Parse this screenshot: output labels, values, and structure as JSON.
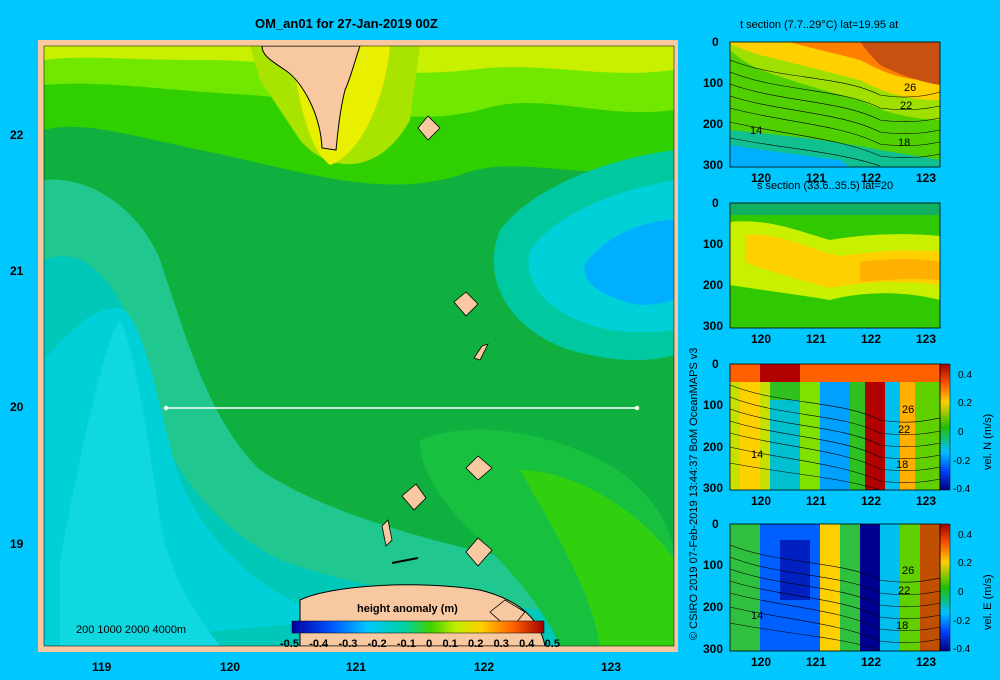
{
  "main_title": "OM_an01 for 27-Jan-2019 00Z",
  "colorbar": {
    "label": "height anomaly (m)",
    "ticks": [
      "-0.5",
      "-0.4",
      "-0.3",
      "-0.2",
      "-0.1",
      "0",
      "0.1",
      "0.2",
      "0.3",
      "0.4",
      "0.5"
    ],
    "range": [
      -0.5,
      0.5
    ]
  },
  "bathymetry_legend": "200  1000  2000  4000m",
  "credit": "© CSIRO 2019   07-Feb-2019 13:44:37 BoM OceanMAPS v3",
  "panels": {
    "t_section": {
      "title": "t section (7.7..29°C) lat=19.95 at"
    },
    "s_section": {
      "title": "s section (33.6..35.5) lat=20"
    },
    "vn_section": {
      "cb_label": "vel. N (m/s)"
    },
    "ve_section": {
      "cb_label": "vel. E (m/s)"
    }
  },
  "chart_data": [
    {
      "type": "heatmap",
      "title": "OM_an01 for 27-Jan-2019 00Z",
      "xticks": [
        "119",
        "120",
        "121",
        "122",
        "123"
      ],
      "yticks": [
        "19",
        "20",
        "21",
        "22"
      ],
      "xlim": [
        118.5,
        123.5
      ],
      "ylim": [
        18.3,
        22.7
      ],
      "section_line": {
        "lat": 20,
        "lon": [
          119.5,
          123.2
        ]
      },
      "colorbar_label": "height anomaly (m)",
      "colorbar_range": [
        -0.5,
        0.5
      ]
    },
    {
      "type": "heatmap",
      "title": "t section (7.7..29°C) lat=19.95 at",
      "xticks": [
        "120",
        "121",
        "122",
        "123"
      ],
      "yticks": [
        "0",
        "100",
        "200",
        "300"
      ],
      "contour_labels": [
        "26",
        "22",
        "18",
        "14"
      ]
    },
    {
      "type": "heatmap",
      "title": "s section (33.6..35.5) lat=20",
      "xticks": [
        "120",
        "121",
        "122",
        "123"
      ],
      "yticks": [
        "0",
        "100",
        "200",
        "300"
      ]
    },
    {
      "type": "heatmap",
      "xticks": [
        "120",
        "121",
        "122",
        "123"
      ],
      "yticks": [
        "0",
        "100",
        "200",
        "300"
      ],
      "contour_labels": [
        "26",
        "22",
        "18",
        "14"
      ],
      "colorbar_label": "vel. N (m/s)",
      "colorbar_ticks": [
        "0.4",
        "0.2",
        "0",
        "-0.2",
        "-0.4"
      ]
    },
    {
      "type": "heatmap",
      "xticks": [
        "120",
        "121",
        "122",
        "123"
      ],
      "yticks": [
        "0",
        "100",
        "200",
        "300"
      ],
      "contour_labels": [
        "26",
        "22",
        "18",
        "14"
      ],
      "colorbar_label": "vel. E (m/s)",
      "colorbar_ticks": [
        "0.4",
        "0.2",
        "0",
        "-0.2",
        "-0.4"
      ]
    }
  ]
}
